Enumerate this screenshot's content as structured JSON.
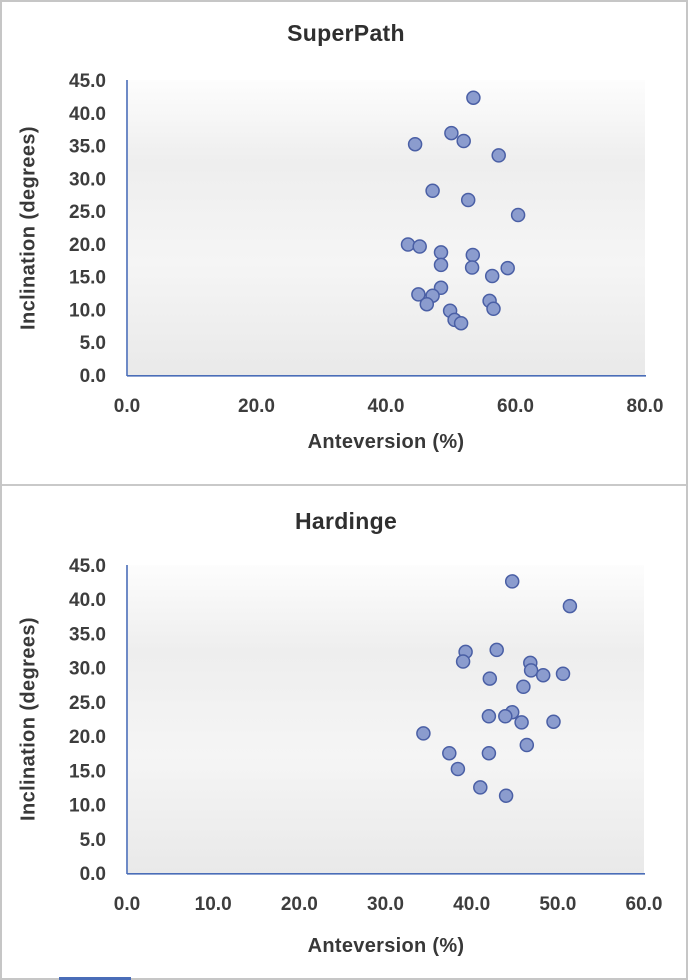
{
  "colors": {
    "marker_fill": "#8B9CCE",
    "marker_stroke": "#4A5FA5",
    "axis_line": "#4A6DB8",
    "tick_text": "#3D3D3D",
    "title_text": "#2F2F2F",
    "panel_border": "#C6C6C6",
    "plot_gradient_top": "#FDFDFD",
    "plot_gradient_mid1": "#EEEEEE",
    "plot_gradient_mid2": "#F5F5F5",
    "plot_gradient_bottom": "#E9E9E9"
  },
  "chart_data": [
    {
      "type": "scatter",
      "title": "SuperPath",
      "xlabel": "Anteversion (%)",
      "ylabel": "Inclination (degrees)",
      "xlim": [
        0,
        80
      ],
      "ylim": [
        0,
        45
      ],
      "xticks": [
        "0.0",
        "20.0",
        "40.0",
        "60.0",
        "80.0"
      ],
      "yticks": [
        "0.0",
        "5.0",
        "10.0",
        "15.0",
        "20.0",
        "25.0",
        "30.0",
        "35.0",
        "40.0",
        "45.0"
      ],
      "grid": false,
      "legend": "none",
      "points": [
        [
          53.5,
          42.3
        ],
        [
          50.1,
          36.9
        ],
        [
          52.0,
          35.7
        ],
        [
          44.5,
          35.2
        ],
        [
          57.4,
          33.5
        ],
        [
          47.2,
          28.1
        ],
        [
          52.7,
          26.7
        ],
        [
          60.4,
          24.4
        ],
        [
          43.4,
          19.9
        ],
        [
          45.2,
          19.6
        ],
        [
          48.5,
          18.7
        ],
        [
          53.4,
          18.3
        ],
        [
          48.5,
          16.8
        ],
        [
          53.3,
          16.4
        ],
        [
          58.8,
          16.3
        ],
        [
          56.4,
          15.1
        ],
        [
          48.5,
          13.3
        ],
        [
          45.0,
          12.3
        ],
        [
          47.2,
          12.1
        ],
        [
          56.0,
          11.3
        ],
        [
          46.3,
          10.8
        ],
        [
          56.6,
          10.1
        ],
        [
          49.9,
          9.8
        ],
        [
          50.6,
          8.4
        ],
        [
          51.6,
          7.9
        ]
      ]
    },
    {
      "type": "scatter",
      "title": "Hardinge",
      "xlabel": "Anteversion (%)",
      "ylabel": "Inclination (degrees)",
      "xlim": [
        0,
        60
      ],
      "ylim": [
        0,
        45
      ],
      "xticks": [
        "0.0",
        "10.0",
        "20.0",
        "30.0",
        "40.0",
        "50.0",
        "60.0"
      ],
      "yticks": [
        "0.0",
        "5.0",
        "10.0",
        "15.0",
        "20.0",
        "25.0",
        "30.0",
        "35.0",
        "40.0",
        "45.0"
      ],
      "grid": false,
      "legend": "none",
      "points": [
        [
          44.7,
          42.6
        ],
        [
          51.4,
          39.0
        ],
        [
          42.9,
          32.6
        ],
        [
          39.3,
          32.3
        ],
        [
          39.0,
          30.9
        ],
        [
          46.8,
          30.7
        ],
        [
          46.9,
          29.6
        ],
        [
          50.6,
          29.1
        ],
        [
          48.3,
          28.9
        ],
        [
          42.1,
          28.4
        ],
        [
          46.0,
          27.2
        ],
        [
          44.7,
          23.5
        ],
        [
          43.9,
          22.9
        ],
        [
          42.0,
          22.9
        ],
        [
          49.5,
          22.1
        ],
        [
          45.8,
          22.0
        ],
        [
          34.4,
          20.4
        ],
        [
          46.4,
          18.7
        ],
        [
          37.4,
          17.5
        ],
        [
          42.0,
          17.5
        ],
        [
          38.4,
          15.2
        ],
        [
          41.0,
          12.5
        ],
        [
          44.0,
          11.3
        ]
      ]
    }
  ]
}
